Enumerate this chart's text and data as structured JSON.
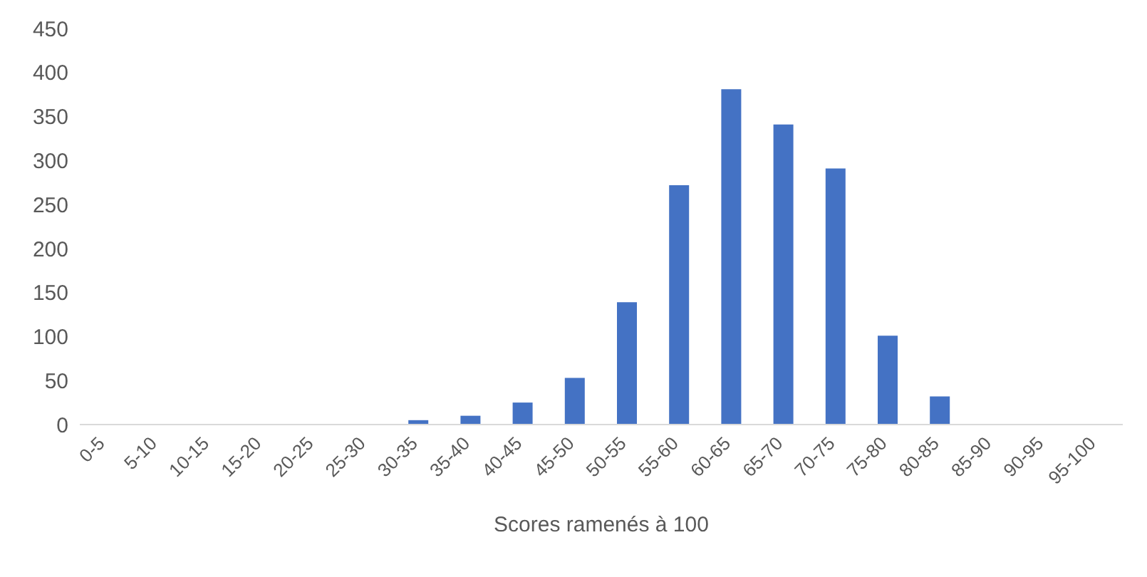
{
  "chart_data": {
    "type": "bar",
    "xlabel": "Scores ramenés à 100",
    "categories": [
      "0-5",
      "5-10",
      "10-15",
      "15-20",
      "20-25",
      "25-30",
      "30-35",
      "35-40",
      "40-45",
      "45-50",
      "50-55",
      "55-60",
      "60-65",
      "65-70",
      "70-75",
      "75-80",
      "80-85",
      "85-90",
      "90-95",
      "95-100"
    ],
    "values": [
      0,
      0,
      0,
      0,
      0,
      0,
      5,
      10,
      25,
      53,
      139,
      272,
      381,
      341,
      291,
      101,
      32,
      0,
      0,
      0
    ],
    "color": "#4472c4",
    "ylim": [
      0,
      450
    ],
    "yticks": [
      0,
      50,
      100,
      150,
      200,
      250,
      300,
      350,
      400,
      450
    ],
    "grid": false,
    "legend": false
  }
}
